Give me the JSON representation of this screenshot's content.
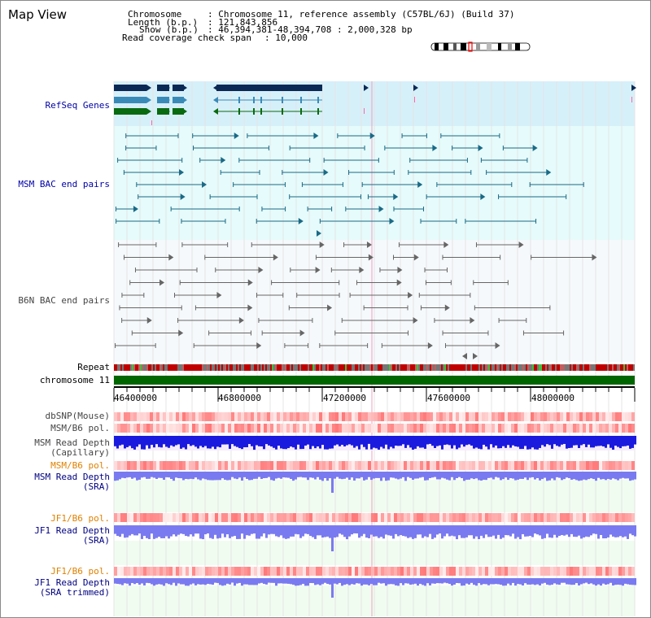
{
  "title": "Map View",
  "info": {
    "chromosome_key": "Chromosome",
    "chromosome_val": ": Chromosome 11, reference assembly (C57BL/6J) (Build 37)",
    "length_key": "Length (b.p.)",
    "length_val": ": 121,843,856",
    "show_key": "Show (b.p.)",
    "show_val": ": 46,394,381-48,394,708 : 2,000,328 bp",
    "read_key": "Read coverage check span",
    "read_val": ": 10,000"
  },
  "tracks": {
    "refseq": "RefSeq Genes",
    "msm_bac": "MSM BAC end pairs",
    "b6n_bac": "B6N BAC end pairs",
    "repeat": "Repeat",
    "chromosome": "chromosome 11",
    "dbsnp": "dbSNP(Mouse)",
    "msm_pol": "MSM/B6 pol.",
    "msm_depth_cap_1": "MSM Read Depth",
    "msm_depth_cap_2": "(Capillary)",
    "msm_pol_2": "MSM/B6 pol.",
    "msm_depth_sra_1": "MSM Read Depth",
    "msm_depth_sra_2": "(SRA)",
    "jf1_pol": "JF1/B6 pol.",
    "jf1_depth_sra_1": "JF1 Read Depth",
    "jf1_depth_sra_2": "(SRA)",
    "jf1_pol_2": "JF1/B6 pol.",
    "jf1_depth_trim_1": "JF1 Read Depth",
    "jf1_depth_trim_2": "(SRA trimmed)"
  },
  "axis": {
    "ticks": [
      "46400000",
      "46800000",
      "47200000",
      "47600000",
      "48000000"
    ]
  },
  "colors": {
    "refseq_bg": "#d6f0fa",
    "bac_bg": "#f0fcfc",
    "gene_dark": "#0a2a55",
    "gene_mid": "#3a8ab8",
    "gene_green": "#0a6a10",
    "msm_pair": "#1a6a86",
    "b6n_pair": "#666666",
    "chrom": "#006600",
    "depth_blue": "#1a1adf",
    "depth_light": "#7a7af0"
  }
}
